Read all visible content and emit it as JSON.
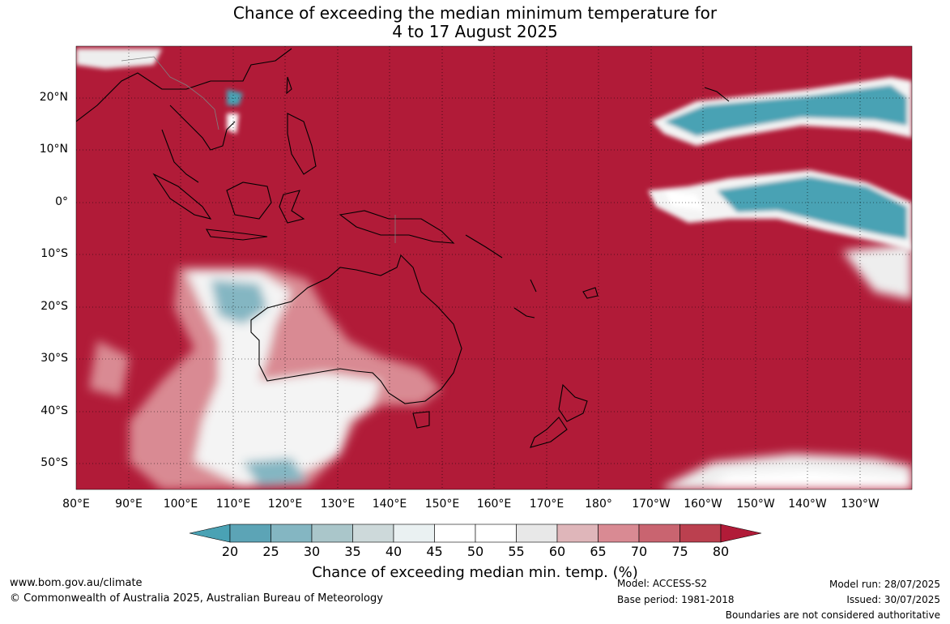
{
  "title_line1": "Chance of exceeding the median minimum temperature for",
  "title_line2": "4 to 17 August 2025",
  "lat_labels": [
    "20°N",
    "10°N",
    "0°",
    "10°S",
    "20°S",
    "30°S",
    "40°S",
    "50°S"
  ],
  "lon_labels": [
    "80°E",
    "90°E",
    "100°E",
    "110°E",
    "120°E",
    "130°E",
    "140°E",
    "150°E",
    "160°E",
    "170°E",
    "180°",
    "170°W",
    "160°W",
    "150°W",
    "140°W",
    "130°W"
  ],
  "colorbar": {
    "ticks": [
      "20",
      "25",
      "30",
      "35",
      "40",
      "45",
      "50",
      "55",
      "60",
      "65",
      "70",
      "75",
      "80"
    ],
    "colors": [
      "#5ca4b6",
      "#84b6c2",
      "#aac6ca",
      "#cdd9da",
      "#eaf1f2",
      "#ffffff",
      "#ffffff",
      "#e8e8e8",
      "#dfb6ba",
      "#d98a93",
      "#c96470",
      "#bb404f"
    ],
    "low_color": "#4aa2b4",
    "high_color": "#b11b38",
    "label": "Chance of exceeding median min. temp. (%)"
  },
  "map_colors": {
    "ocean_high": "#b11b38",
    "low": "#4aa2b4"
  },
  "footer": {
    "website": "www.bom.gov.au/climate",
    "copyright": "© Commonwealth of Australia 2025, Australian Bureau of Meteorology",
    "model": "Model: ACCESS-S2",
    "base_period": "Base period: 1981-2018",
    "model_run": "Model run: 28/07/2025",
    "issued": "Issued: 30/07/2025",
    "disclaimer": "Boundaries are not considered authoritative"
  }
}
